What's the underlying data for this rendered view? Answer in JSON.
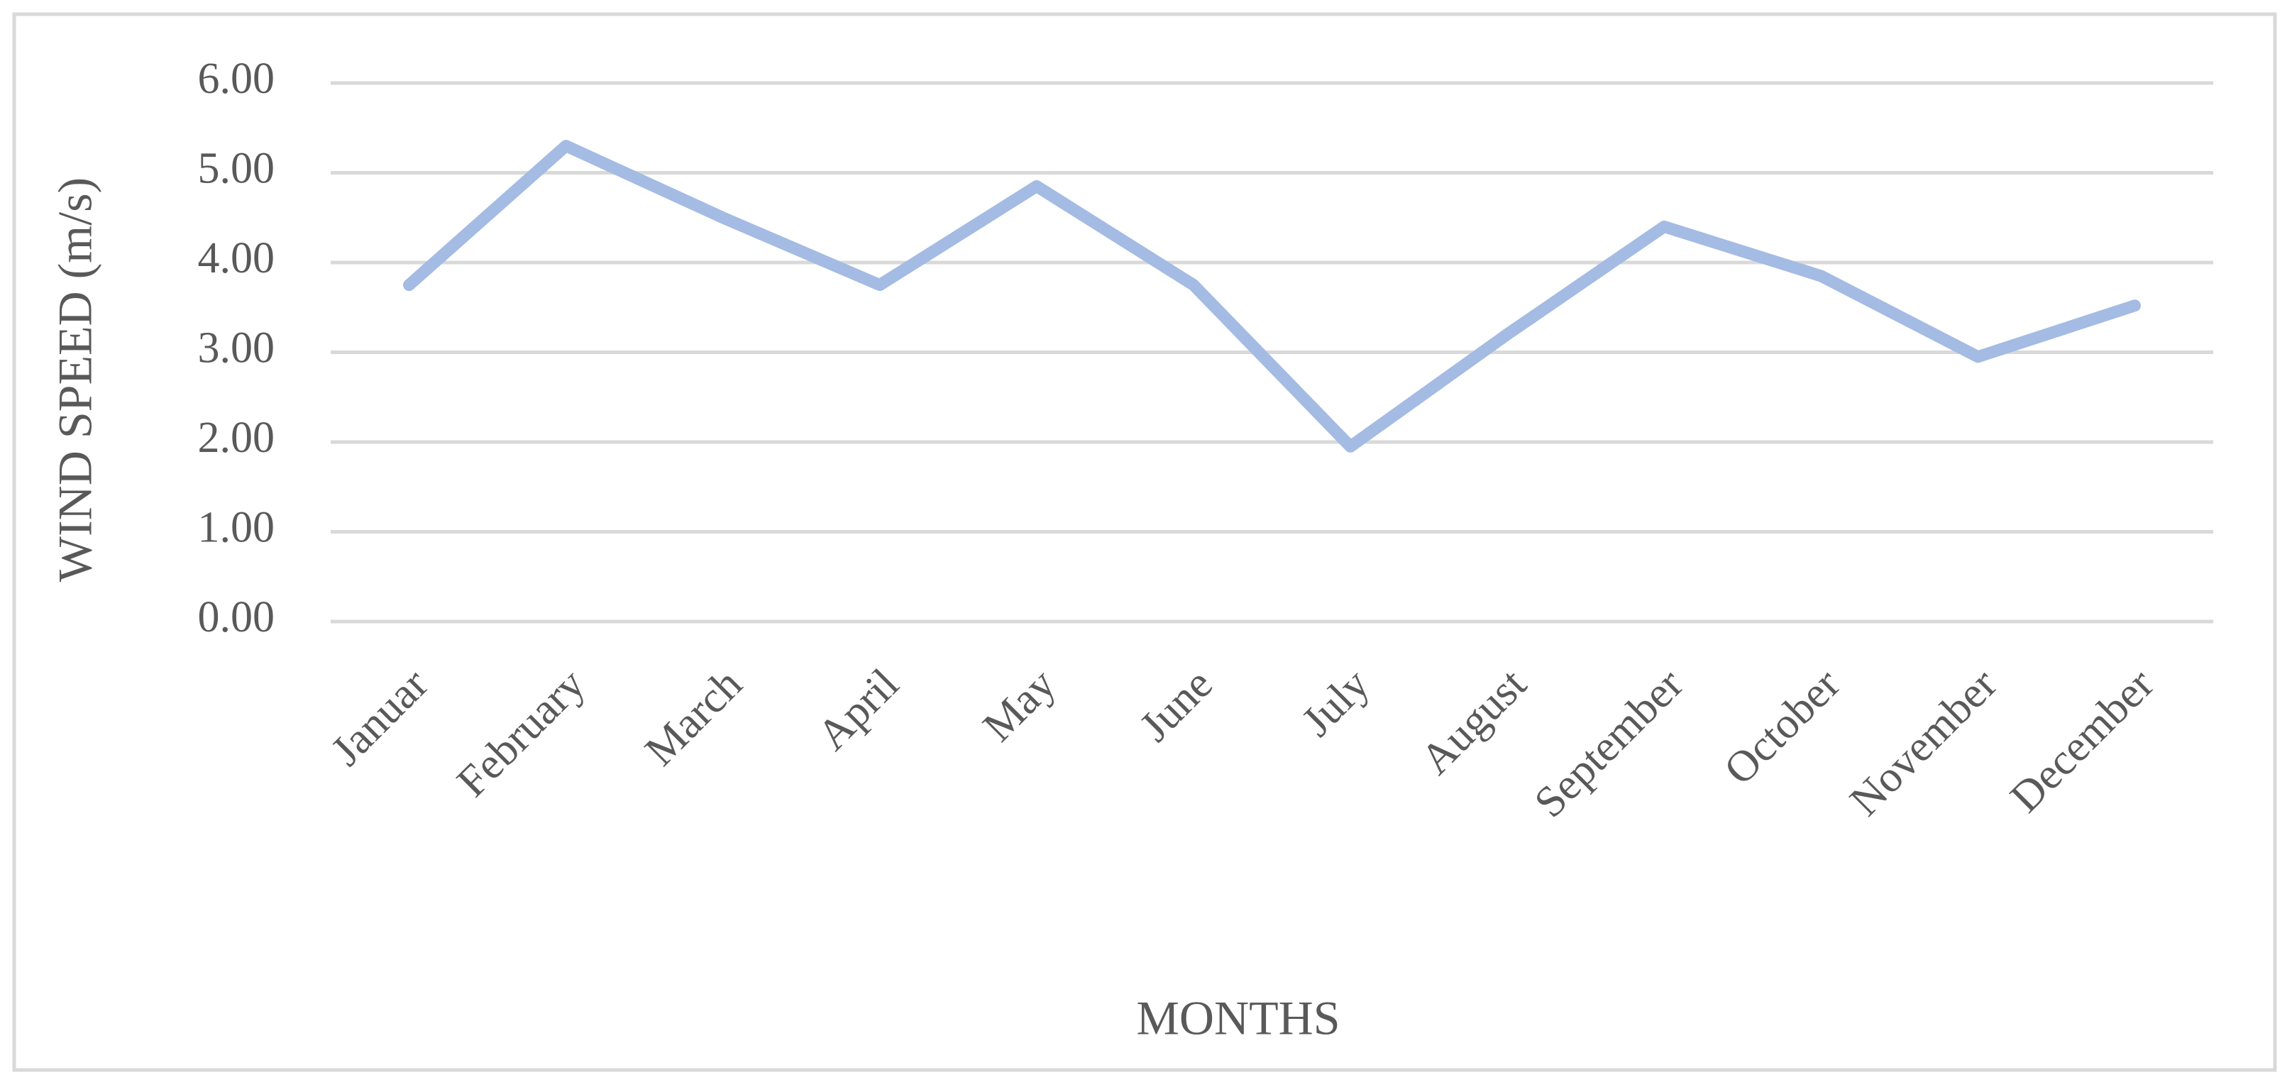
{
  "chart_data": {
    "type": "line",
    "x_label": "MONTHS",
    "y_label": "WIND SPEED (m/s)",
    "categories": [
      "Januar",
      "February",
      "March",
      "April",
      "May",
      "June",
      "July",
      "August",
      "September",
      "October",
      "November",
      "December"
    ],
    "series": [
      {
        "color": "#a4bbe3",
        "values": [
          3.75,
          5.3,
          4.5,
          3.75,
          4.85,
          3.75,
          1.95,
          3.2,
          4.4,
          3.85,
          2.95,
          3.52
        ]
      }
    ],
    "ylim": [
      0,
      6
    ],
    "yticks": [
      {
        "value": 0,
        "label": "0.00"
      },
      {
        "value": 1,
        "label": "1.00"
      },
      {
        "value": 2,
        "label": "2.00"
      },
      {
        "value": 3,
        "label": "3.00"
      },
      {
        "value": 4,
        "label": "4.00"
      },
      {
        "value": 5,
        "label": "5.00"
      },
      {
        "value": 6,
        "label": "6.00"
      }
    ],
    "grid": true
  }
}
